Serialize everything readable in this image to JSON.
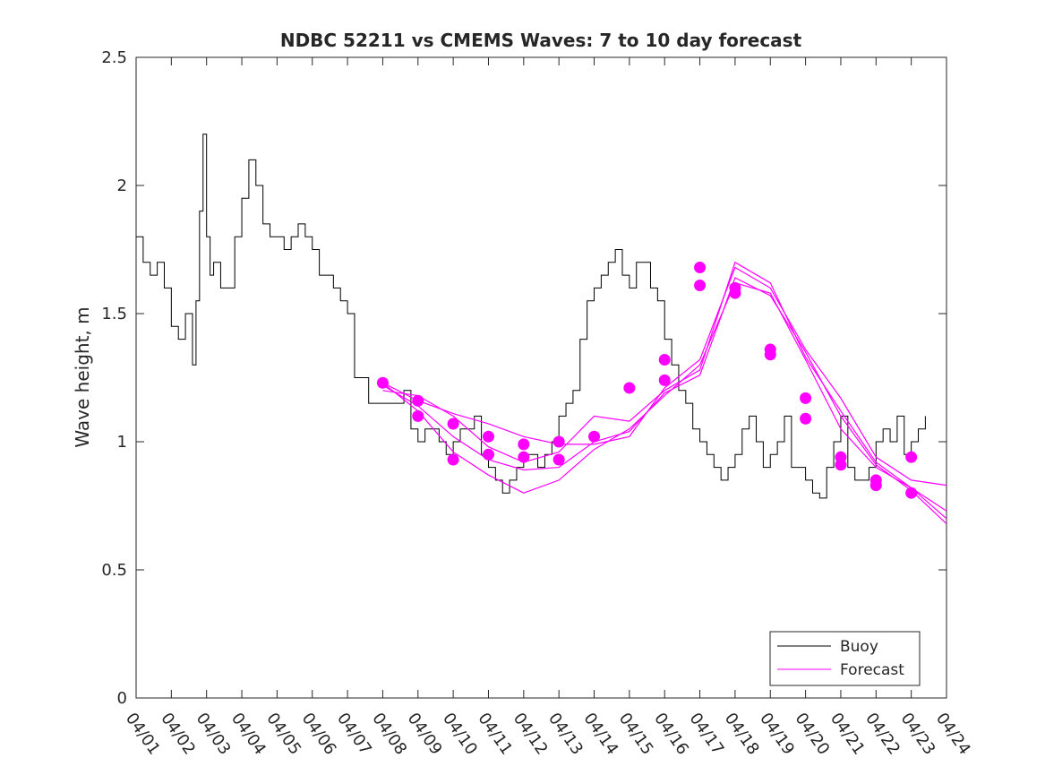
{
  "chart_data": {
    "type": "line",
    "title": "NDBC 52211 vs CMEMS Waves: 7 to 10 day forecast",
    "xlabel": "",
    "ylabel": "Wave height, m",
    "x_unit": "days since 04/01",
    "xlim": [
      0,
      23
    ],
    "ylim": [
      0,
      2.5
    ],
    "yticks": [
      0,
      0.5,
      1,
      1.5,
      2,
      2.5
    ],
    "ytick_labels": [
      "0",
      "0.5",
      "1",
      "1.5",
      "2",
      "2.5"
    ],
    "xtick_labels": [
      "04/01",
      "04/02",
      "04/03",
      "04/04",
      "04/05",
      "04/06",
      "04/07",
      "04/08",
      "04/09",
      "04/10",
      "04/11",
      "04/12",
      "04/13",
      "04/14",
      "04/15",
      "04/16",
      "04/17",
      "04/18",
      "04/19",
      "04/20",
      "04/21",
      "04/22",
      "04/23",
      "04/24"
    ],
    "grid": false,
    "legend": {
      "location": "bottom-right",
      "entries": [
        "Buoy",
        "Forecast"
      ]
    },
    "colors": {
      "buoy": "#000000",
      "forecast": "#ff00ff",
      "axis": "#262626"
    },
    "series": [
      {
        "name": "Buoy",
        "x": [
          0,
          0.2,
          0.4,
          0.6,
          0.8,
          1.0,
          1.2,
          1.4,
          1.6,
          1.7,
          1.8,
          1.9,
          2.0,
          2.1,
          2.2,
          2.4,
          2.6,
          2.8,
          3.0,
          3.2,
          3.4,
          3.6,
          3.8,
          3.9,
          4.0,
          4.2,
          4.4,
          4.6,
          4.8,
          5.0,
          5.2,
          5.4,
          5.6,
          5.8,
          6.0,
          6.2,
          6.4,
          6.6,
          6.8,
          7.0,
          7.2,
          7.4,
          7.6,
          7.8,
          8.0,
          8.2,
          8.4,
          8.6,
          8.8,
          9.0,
          9.2,
          9.4,
          9.6,
          9.8,
          10.0,
          10.2,
          10.4,
          10.6,
          10.8,
          11.0,
          11.2,
          11.4,
          11.6,
          11.8,
          12.0,
          12.2,
          12.4,
          12.6,
          12.8,
          13.0,
          13.2,
          13.4,
          13.6,
          13.8,
          14.0,
          14.2,
          14.4,
          14.6,
          14.8,
          15.0,
          15.2,
          15.4,
          15.6,
          15.8,
          16.0,
          16.2,
          16.4,
          16.6,
          16.8,
          17.0,
          17.2,
          17.4,
          17.6,
          17.8,
          18.0,
          18.2,
          18.4,
          18.6,
          18.8,
          19.0,
          19.2,
          19.4,
          19.6,
          19.8,
          20.0,
          20.2,
          20.4,
          20.6,
          20.8,
          21.0,
          21.2,
          21.4,
          21.6,
          21.8,
          22.0,
          22.2,
          22.4
        ],
        "values": [
          1.8,
          1.7,
          1.65,
          1.7,
          1.6,
          1.45,
          1.4,
          1.5,
          1.3,
          1.55,
          1.9,
          2.2,
          1.8,
          1.65,
          1.7,
          1.6,
          1.6,
          1.8,
          1.95,
          2.1,
          2.0,
          1.85,
          1.8,
          1.8,
          1.8,
          1.75,
          1.8,
          1.85,
          1.8,
          1.75,
          1.65,
          1.65,
          1.6,
          1.55,
          1.5,
          1.25,
          1.25,
          1.15,
          1.15,
          1.15,
          1.15,
          1.15,
          1.2,
          1.05,
          1.0,
          1.05,
          1.05,
          1.0,
          0.95,
          1.0,
          1.05,
          1.05,
          1.1,
          0.95,
          0.9,
          0.85,
          0.8,
          0.85,
          0.9,
          0.95,
          0.95,
          0.9,
          0.95,
          1.0,
          1.1,
          1.15,
          1.2,
          1.4,
          1.55,
          1.6,
          1.65,
          1.7,
          1.75,
          1.65,
          1.6,
          1.7,
          1.7,
          1.6,
          1.55,
          1.4,
          1.3,
          1.2,
          1.15,
          1.05,
          1.0,
          0.95,
          0.9,
          0.85,
          0.9,
          0.95,
          1.05,
          1.1,
          1.0,
          0.9,
          0.95,
          1.0,
          1.1,
          0.9,
          0.9,
          0.85,
          0.8,
          0.78,
          0.9,
          1.0,
          1.1,
          0.9,
          0.85,
          0.85,
          0.9,
          1.0,
          1.05,
          1.0,
          1.1,
          0.95,
          1.0,
          1.05,
          1.1
        ]
      },
      {
        "name": "Forecast",
        "runs": [
          {
            "x": [
              7.0,
              8.0,
              9.0,
              10.0,
              11.0,
              12.0,
              13.0,
              14.0,
              15.0,
              16.0,
              17.0,
              18.0,
              19.0,
              20.0,
              21.0,
              22.0,
              23.0
            ],
            "values": [
              1.23,
              1.16,
              1.11,
              1.07,
              1.02,
              0.99,
              0.99,
              1.02,
              1.21,
              1.32,
              1.68,
              1.6,
              1.36,
              1.17,
              0.94,
              0.85,
              0.83
            ]
          },
          {
            "x": [
              7.0,
              8.0,
              9.0,
              10.0,
              11.0,
              12.0,
              13.0,
              14.0,
              15.0,
              16.0,
              17.0,
              18.0,
              19.0,
              20.0,
              21.0,
              22.0,
              23.0
            ],
            "values": [
              1.23,
              1.12,
              0.96,
              0.87,
              0.8,
              0.85,
              0.97,
              1.05,
              1.18,
              1.3,
              1.62,
              1.58,
              1.32,
              1.05,
              0.9,
              0.82,
              0.73
            ]
          },
          {
            "x": [
              7.0,
              8.0,
              9.0,
              10.0,
              11.0,
              12.0,
              13.0,
              14.0,
              15.0,
              16.0,
              17.0,
              18.0,
              19.0,
              20.0,
              21.0,
              22.0,
              23.0
            ],
            "values": [
              1.2,
              1.18,
              1.1,
              0.98,
              0.92,
              0.96,
              1.1,
              1.08,
              1.2,
              1.28,
              1.7,
              1.62,
              1.33,
              1.12,
              0.92,
              0.82,
              0.7
            ]
          },
          {
            "x": [
              7.0,
              8.0,
              9.0,
              10.0,
              11.0,
              12.0,
              13.0,
              14.0,
              15.0,
              16.0,
              17.0,
              18.0,
              19.0,
              20.0,
              21.0,
              22.0,
              23.0
            ],
            "values": [
              1.22,
              1.14,
              1.02,
              0.93,
              0.89,
              0.9,
              1.0,
              1.04,
              1.19,
              1.26,
              1.64,
              1.57,
              1.35,
              1.1,
              0.91,
              0.81,
              0.68
            ]
          }
        ]
      }
    ],
    "forecast_markers": {
      "x": [
        7.0,
        8.0,
        8.0,
        9.0,
        9.0,
        10.0,
        10.0,
        11.0,
        11.0,
        12.0,
        12.0,
        13.0,
        14.0,
        15.0,
        15.0,
        16.0,
        16.0,
        17.0,
        17.0,
        18.0,
        18.0,
        19.0,
        19.0,
        20.0,
        20.0,
        21.0,
        21.0,
        22.0,
        22.0
      ],
      "values": [
        1.23,
        1.16,
        1.1,
        1.07,
        0.93,
        1.02,
        0.95,
        0.99,
        0.94,
        1.0,
        0.93,
        1.02,
        1.21,
        1.32,
        1.24,
        1.68,
        1.61,
        1.6,
        1.58,
        1.36,
        1.34,
        1.17,
        1.09,
        0.94,
        0.91,
        0.85,
        0.83,
        0.94,
        0.8
      ]
    }
  }
}
